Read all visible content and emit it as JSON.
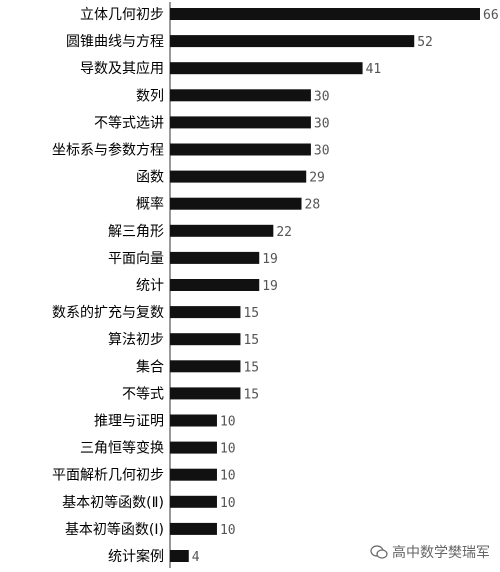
{
  "chart_data": {
    "type": "bar",
    "orientation": "horizontal",
    "categories": [
      "立体几何初步",
      "圆锥曲线与方程",
      "导数及其应用",
      "数列",
      "不等式选讲",
      "坐标系与参数方程",
      "函数",
      "概率",
      "解三角形",
      "平面向量",
      "统计",
      "数系的扩充与复数",
      "算法初步",
      "集合",
      "不等式",
      "推理与证明",
      "三角恒等变换",
      "平面解析几何初步",
      "基本初等函数(Ⅱ)",
      "基本初等函数(Ⅰ)",
      "统计案例"
    ],
    "value_labels": [
      "66",
      "52",
      "41",
      "30",
      "30",
      "30",
      "29",
      "28",
      "22",
      "19",
      "19",
      "15",
      "15",
      "15",
      "15",
      "10",
      "10",
      "10",
      "10",
      "10",
      "4"
    ],
    "values": [
      66,
      52,
      41,
      30,
      30,
      30,
      29,
      28,
      22,
      19,
      19,
      15,
      15,
      15,
      15,
      10,
      10,
      10,
      10,
      10,
      4
    ],
    "xlim": [
      0,
      66
    ],
    "bar_color": "#111111",
    "label_color": "#000000",
    "value_color": "#555555"
  },
  "watermark": {
    "text": "高中数学樊瑞军",
    "icon": "wechat-icon"
  }
}
